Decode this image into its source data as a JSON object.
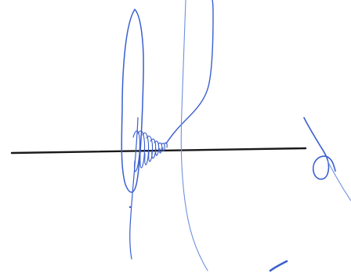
{
  "image": {
    "kind": "handwritten signature over a horizontal line",
    "background_color": "#ffffff",
    "line_color": "#1a1a1a",
    "ink_color": "#3a5fd0",
    "ink_light_color": "#6f8fe0"
  }
}
